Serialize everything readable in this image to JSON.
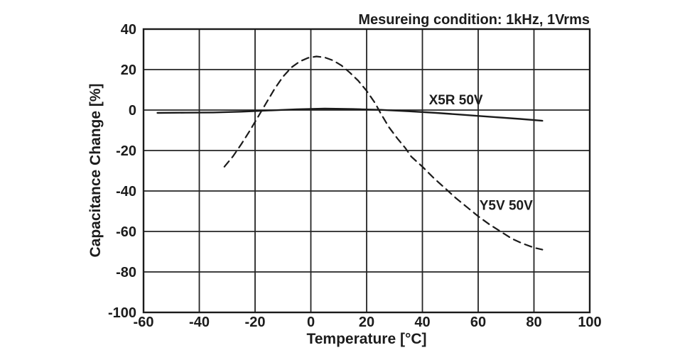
{
  "chart_data": {
    "type": "line",
    "title": "Mesureing condition: 1kHz, 1Vrms",
    "xlabel": "Temperature [°C]",
    "ylabel": "Capacitance Change [%]",
    "xlim": [
      -60,
      100
    ],
    "ylim": [
      -100,
      40
    ],
    "xticks": [
      -60,
      -40,
      -20,
      0,
      20,
      40,
      60,
      80,
      100
    ],
    "yticks": [
      40,
      20,
      0,
      -20,
      -40,
      -60,
      -80,
      -100
    ],
    "grid": true,
    "legend_position": "inline-annotations",
    "series": [
      {
        "name": "X5R 50V",
        "style": "solid",
        "points": [
          [
            -55,
            -1.4
          ],
          [
            -45,
            -1.3
          ],
          [
            -35,
            -1.2
          ],
          [
            -25,
            -0.8
          ],
          [
            -15,
            -0.2
          ],
          [
            -5,
            0.4
          ],
          [
            5,
            0.7
          ],
          [
            15,
            0.5
          ],
          [
            25,
            0.1
          ],
          [
            35,
            -0.6
          ],
          [
            45,
            -1.4
          ],
          [
            55,
            -2.4
          ],
          [
            65,
            -3.4
          ],
          [
            75,
            -4.4
          ],
          [
            83,
            -5.3
          ]
        ]
      },
      {
        "name": "Y5V 50V",
        "style": "dashed",
        "points": [
          [
            -31,
            -28
          ],
          [
            -28,
            -23
          ],
          [
            -25,
            -17
          ],
          [
            -22,
            -10.5
          ],
          [
            -19,
            -3.5
          ],
          [
            -16,
            3.5
          ],
          [
            -13,
            10.5
          ],
          [
            -10,
            16.5
          ],
          [
            -7,
            21
          ],
          [
            -4,
            24
          ],
          [
            -1,
            25.8
          ],
          [
            2,
            26.5
          ],
          [
            5,
            26
          ],
          [
            8,
            24.5
          ],
          [
            11,
            22
          ],
          [
            14,
            18.5
          ],
          [
            17,
            14.5
          ],
          [
            20,
            9.5
          ],
          [
            23,
            3.5
          ],
          [
            25,
            -1.5
          ],
          [
            28,
            -8.5
          ],
          [
            31,
            -14
          ],
          [
            34,
            -19
          ],
          [
            36,
            -23
          ],
          [
            40,
            -28
          ],
          [
            44,
            -33.5
          ],
          [
            48,
            -38.5
          ],
          [
            52,
            -43.5
          ],
          [
            56,
            -48
          ],
          [
            60,
            -52.5
          ],
          [
            64,
            -56.5
          ],
          [
            68,
            -60
          ],
          [
            72,
            -63.5
          ],
          [
            76,
            -66
          ],
          [
            80,
            -68
          ],
          [
            83,
            -69
          ]
        ]
      }
    ],
    "annotations": [
      {
        "text": "X5R 50V",
        "x": 52,
        "y": 4.6
      },
      {
        "text": "Y5V 50V",
        "x": 70,
        "y": -47.5
      }
    ]
  },
  "colors": {
    "ink": "#1c1c1c",
    "background": "#ffffff"
  }
}
